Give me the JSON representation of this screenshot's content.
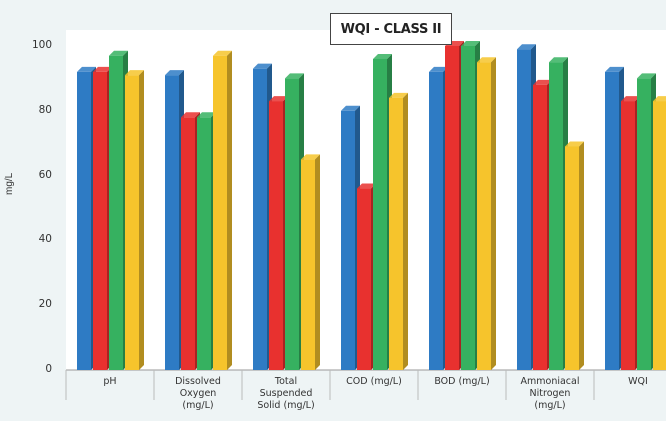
{
  "chart_data": {
    "type": "bar",
    "title": "WQI - CLASS II",
    "ylabel": "mg/L",
    "xlabel": "",
    "ylim": [
      0,
      100
    ],
    "yticks": [
      "0",
      "20",
      "40",
      "60",
      "80",
      "100"
    ],
    "categories": [
      "pH",
      "Dissolved Oxygen (mg/L)",
      "Total Suspended Solid (mg/L)",
      "COD (mg/L)",
      "BOD (mg/L)",
      "Ammoniacal Nitrogen (mg/L)",
      "WQI"
    ],
    "category_lines": [
      [
        "pH"
      ],
      [
        "Dissolved",
        "Oxygen",
        "(mg/L)"
      ],
      [
        "Total",
        "Suspended",
        "Solid (mg/L)"
      ],
      [
        "COD (mg/L)"
      ],
      [
        "BOD (mg/L)"
      ],
      [
        "Ammoniacal",
        "Nitrogen",
        "(mg/L)"
      ],
      [
        "WQI"
      ]
    ],
    "series": [
      {
        "color": "#2e7bc4",
        "values": [
          92,
          91,
          93,
          80,
          92,
          99,
          92
        ]
      },
      {
        "color": "#e8312f",
        "values": [
          92,
          78,
          83,
          56,
          100,
          88,
          83
        ]
      },
      {
        "color": "#36b160",
        "values": [
          97,
          78,
          90,
          96,
          100,
          95,
          90
        ]
      },
      {
        "color": "#f6c42c",
        "values": [
          91,
          97,
          65,
          84,
          95,
          69,
          83
        ]
      }
    ],
    "grid": false,
    "legend": "none"
  }
}
